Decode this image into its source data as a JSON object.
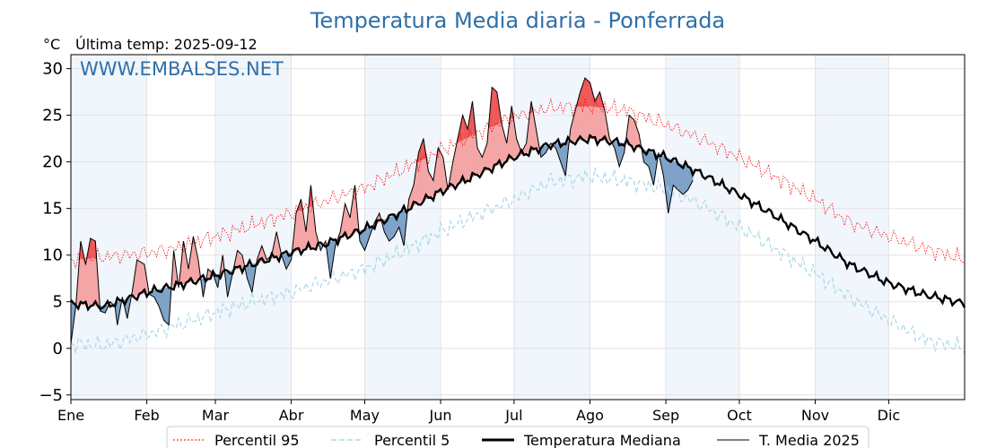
{
  "chart_data": {
    "type": "line",
    "title": "Temperatura Media diaria - Ponferrada",
    "unit": "°C",
    "last_reading": "Última temp: 2025-09-12",
    "watermark": "WWW.EMBALSES.NET",
    "x_tick_labels": [
      "Ene",
      "Feb",
      "Mar",
      "Abr",
      "May",
      "Jun",
      "Jul",
      "Ago",
      "Sep",
      "Oct",
      "Nov",
      "Dic"
    ],
    "y_ticks": [
      -5,
      0,
      5,
      10,
      15,
      20,
      25,
      30
    ],
    "ylim": [
      -5.5,
      31.5
    ],
    "xlim": [
      1,
      366
    ],
    "grid": true,
    "legend_position": "bottom",
    "colors": {
      "p95": "#ff0000",
      "p5": "#a8d8e8",
      "median": "#000000",
      "year": "#000000",
      "above": "#f4a6a6",
      "above_p95": "#ee5555",
      "below": "#7fa3c8",
      "month_band": "#f0f6fc",
      "title": "#2f6fa8"
    },
    "series": [
      {
        "name": "Percentil 95",
        "style": "dotted",
        "x": [
          1,
          15,
          32,
          45,
          60,
          75,
          91,
          105,
          121,
          135,
          152,
          166,
          182,
          196,
          213,
          227,
          244,
          258,
          274,
          288,
          305,
          319,
          335,
          349,
          366
        ],
        "values": [
          9.5,
          9.8,
          10.2,
          10.8,
          12.0,
          13.2,
          14.5,
          15.8,
          17.2,
          19.0,
          21.2,
          23.0,
          24.8,
          25.8,
          26.0,
          25.6,
          24.0,
          22.5,
          20.5,
          18.5,
          16.0,
          13.5,
          12.0,
          10.8,
          9.5
        ]
      },
      {
        "name": "Percentil 5",
        "style": "dashed",
        "x": [
          1,
          15,
          32,
          45,
          60,
          75,
          91,
          105,
          121,
          135,
          152,
          166,
          182,
          196,
          213,
          227,
          244,
          258,
          274,
          288,
          305,
          319,
          335,
          349,
          366
        ],
        "values": [
          0.5,
          0.3,
          1.5,
          2.5,
          3.8,
          5.0,
          6.0,
          7.2,
          8.5,
          10.2,
          12.5,
          14.2,
          16.0,
          17.8,
          18.5,
          18.0,
          17.0,
          15.5,
          13.0,
          10.8,
          8.0,
          5.5,
          3.0,
          1.0,
          0.0
        ]
      },
      {
        "name": "Temperatura Mediana",
        "style": "thick",
        "x": [
          1,
          15,
          32,
          45,
          60,
          75,
          91,
          105,
          121,
          135,
          152,
          166,
          182,
          196,
          213,
          227,
          244,
          258,
          274,
          288,
          305,
          319,
          335,
          349,
          366
        ],
        "values": [
          4.8,
          4.5,
          6.0,
          6.8,
          7.8,
          9.0,
          10.3,
          11.2,
          12.8,
          14.5,
          16.8,
          18.5,
          20.5,
          21.8,
          22.5,
          22.0,
          20.5,
          18.8,
          16.5,
          14.3,
          11.5,
          9.0,
          7.0,
          5.8,
          4.8
        ]
      },
      {
        "name": "T. Media 2025",
        "style": "thin",
        "x": [
          1,
          3,
          5,
          7,
          9,
          11,
          13,
          15,
          17,
          19,
          20,
          22,
          24,
          26,
          28,
          31,
          33,
          35,
          37,
          39,
          41,
          43,
          45,
          47,
          49,
          51,
          53,
          55,
          57,
          59,
          61,
          63,
          65,
          67,
          69,
          71,
          73,
          75,
          77,
          79,
          81,
          83,
          85,
          87,
          89,
          91,
          93,
          95,
          97,
          99,
          101,
          103,
          105,
          107,
          109,
          111,
          113,
          115,
          117,
          119,
          121,
          123,
          125,
          127,
          129,
          131,
          133,
          135,
          137,
          139,
          141,
          143,
          145,
          147,
          149,
          151,
          153,
          155,
          157,
          159,
          161,
          163,
          165,
          167,
          169,
          171,
          173,
          175,
          177,
          179,
          181,
          183,
          185,
          187,
          189,
          191,
          193,
          195,
          197,
          199,
          201,
          203,
          205,
          207,
          209,
          211,
          213,
          215,
          217,
          219,
          221,
          223,
          225,
          227,
          229,
          231,
          233,
          235,
          237,
          239,
          241,
          243,
          245,
          247,
          249,
          251,
          253,
          255
        ],
        "values": [
          0.5,
          4.5,
          11.5,
          9.0,
          11.8,
          11.5,
          4.0,
          3.8,
          5.0,
          4.5,
          2.5,
          5.5,
          3.2,
          6.0,
          9.5,
          9.0,
          5.8,
          5.5,
          4.5,
          3.0,
          2.5,
          10.5,
          6.5,
          11.5,
          8.5,
          12.0,
          9.5,
          5.5,
          8.5,
          8.0,
          6.5,
          10.0,
          5.5,
          8.0,
          10.5,
          10.0,
          7.5,
          6.0,
          9.5,
          11.0,
          9.5,
          10.0,
          12.5,
          10.0,
          8.5,
          9.5,
          14.5,
          16.0,
          12.5,
          17.5,
          12.5,
          10.5,
          11.5,
          7.5,
          11.0,
          12.5,
          15.5,
          14.0,
          17.5,
          11.5,
          10.5,
          12.0,
          13.5,
          14.5,
          12.5,
          11.5,
          12.0,
          13.0,
          11.0,
          16.0,
          17.5,
          21.0,
          22.5,
          19.0,
          18.0,
          21.5,
          20.5,
          17.0,
          20.0,
          22.5,
          25.0,
          23.5,
          26.5,
          21.5,
          20.5,
          22.0,
          28.0,
          27.5,
          24.0,
          22.0,
          26.0,
          22.5,
          21.0,
          22.0,
          26.5,
          23.5,
          20.5,
          21.0,
          22.0,
          21.5,
          20.0,
          18.5,
          23.5,
          25.5,
          27.5,
          29.0,
          28.5,
          26.5,
          27.5,
          25.5,
          22.5,
          21.5,
          19.5,
          21.0,
          25.0,
          24.5,
          23.0,
          20.0,
          19.5,
          17.5,
          21.0,
          18.5,
          14.5,
          17.5,
          17.0,
          16.5,
          17.0,
          18.0
        ]
      }
    ]
  },
  "legend": [
    {
      "key": "p95",
      "label": "Percentil 95"
    },
    {
      "key": "p5",
      "label": "Percentil 5"
    },
    {
      "key": "median",
      "label": "Temperatura Mediana"
    },
    {
      "key": "year",
      "label": "T. Media 2025"
    }
  ]
}
